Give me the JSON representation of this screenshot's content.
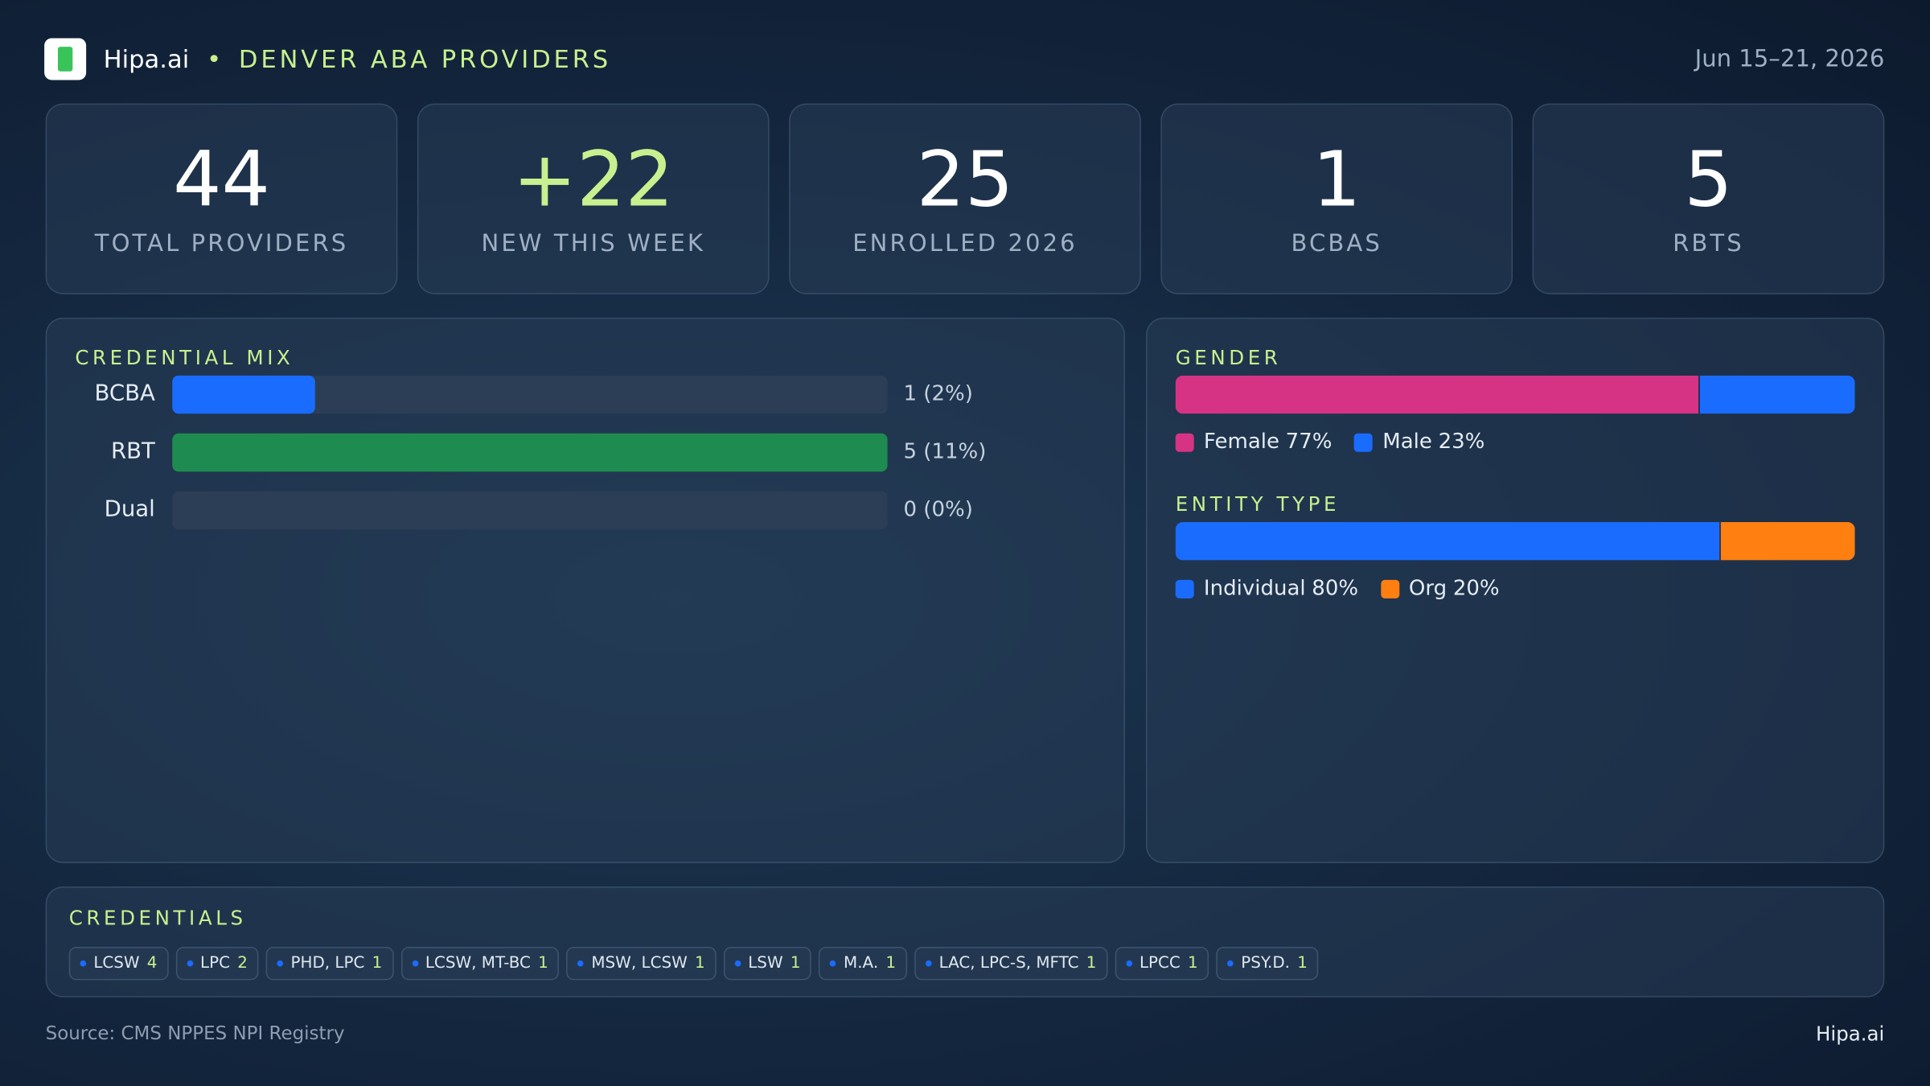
{
  "header": {
    "brand": "Hipa.ai",
    "title": "DENVER ABA PROVIDERS",
    "date": "Jun 15–21, 2026"
  },
  "kpis": [
    {
      "value": "44",
      "label": "TOTAL PROVIDERS"
    },
    {
      "value": "+22",
      "label": "NEW THIS WEEK"
    },
    {
      "value": "25",
      "label": "ENROLLED 2026"
    },
    {
      "value": "1",
      "label": "BCBAS"
    },
    {
      "value": "5",
      "label": "RBTS"
    }
  ],
  "chart_data": [
    {
      "type": "hbar",
      "title": "CREDENTIAL MIX",
      "categories": [
        "BCBA",
        "RBT",
        "Dual"
      ],
      "values": [
        1,
        5,
        0
      ],
      "value_labels": [
        "1 (2%)",
        "5 (11%)",
        "0 (0%)"
      ],
      "colors": [
        "#1a6cff",
        "#1e8c50",
        "#1a6cff"
      ],
      "xlim": [
        0,
        5
      ]
    },
    {
      "type": "stacked",
      "title": "GENDER",
      "xlim": [
        0,
        100
      ],
      "series": [
        {
          "name": "Female",
          "color": "#d63384",
          "values": [
            77
          ],
          "value_labels": [
            "77%"
          ]
        },
        {
          "name": "Male",
          "color": "#1a6cff",
          "values": [
            23
          ],
          "value_labels": [
            "23%"
          ]
        }
      ]
    },
    {
      "type": "stacked",
      "title": "ENTITY TYPE",
      "xlim": [
        0,
        100
      ],
      "series": [
        {
          "name": "Individual",
          "color": "#1a6cff",
          "values": [
            80
          ],
          "value_labels": [
            "80%"
          ]
        },
        {
          "name": "Org",
          "color": "#ff7f11",
          "values": [
            20
          ],
          "value_labels": [
            "20%"
          ]
        }
      ]
    }
  ],
  "credentials": {
    "title": "CREDENTIALS",
    "items": [
      {
        "name": "LCSW",
        "count": 4
      },
      {
        "name": "LPC",
        "count": 2
      },
      {
        "name": "PHD, LPC",
        "count": 1
      },
      {
        "name": "LCSW, MT-BC",
        "count": 1
      },
      {
        "name": "MSW, LCSW",
        "count": 1
      },
      {
        "name": "LSW",
        "count": 1
      },
      {
        "name": "M.A.",
        "count": 1
      },
      {
        "name": "LAC, LPC-S, MFTC",
        "count": 1
      },
      {
        "name": "LPCC",
        "count": 1
      },
      {
        "name": "PSY.D.",
        "count": 1
      }
    ]
  },
  "footer": {
    "source": "Source: CMS NPPES NPI Registry",
    "brand": "Hipa.ai"
  }
}
